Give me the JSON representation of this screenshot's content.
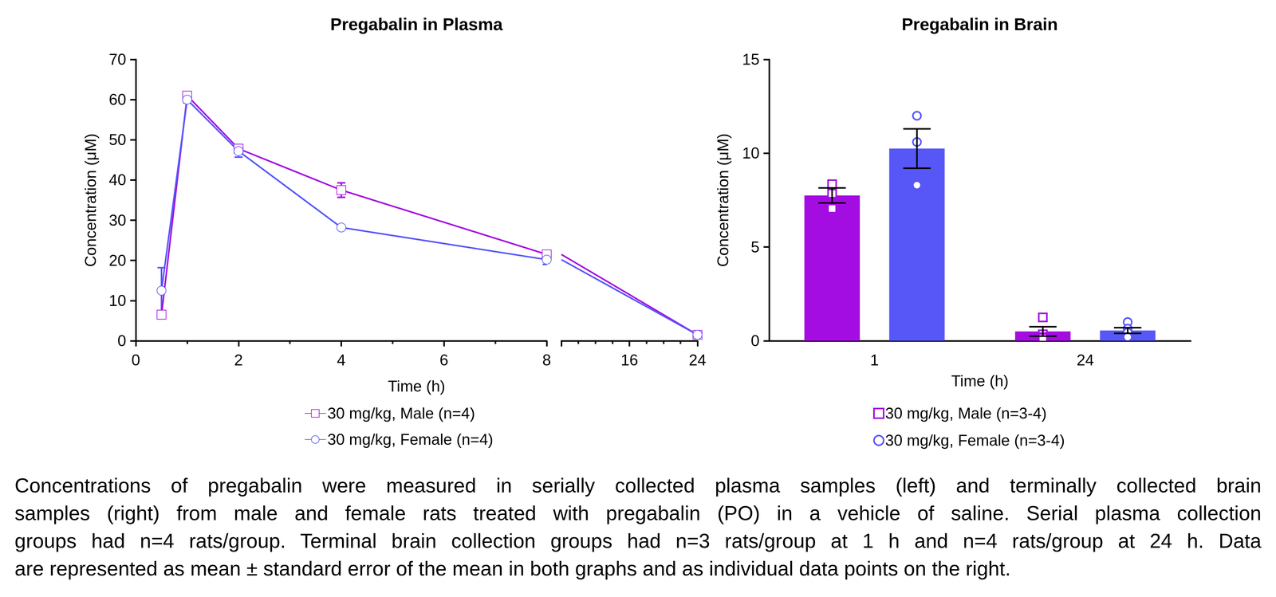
{
  "chart_data": [
    {
      "type": "line",
      "title": "Pregabalin in Plasma",
      "x_label": "Time (h)",
      "y_label": "Concentration (μM)",
      "xlim": [
        0,
        24
      ],
      "x_break": 8,
      "xticks": [
        0,
        2,
        4,
        6,
        8,
        16,
        24
      ],
      "ylim": [
        0,
        70
      ],
      "yticks": [
        0,
        10,
        20,
        30,
        40,
        50,
        60,
        70
      ],
      "x": [
        0.5,
        1,
        2,
        4,
        8,
        24
      ],
      "legend": "bottom",
      "series": [
        {
          "name": "30 mg/kg, Male (n=4)",
          "color": "#A40DE1",
          "marker": "open_square",
          "values": [
            6.5,
            61.0,
            47.8,
            37.5,
            21.5,
            1.5
          ],
          "errors": [
            1.0,
            0.5,
            1.0,
            1.8,
            0.8,
            0.2
          ]
        },
        {
          "name": "30 mg/kg, Female (n=4)",
          "color": "#5757F8",
          "marker": "open_circle",
          "values": [
            12.5,
            60.0,
            47.2,
            28.2,
            20.2,
            1.5
          ],
          "errors": [
            5.7,
            0.8,
            1.5,
            0.5,
            1.2,
            0.2
          ]
        }
      ]
    },
    {
      "type": "bar",
      "title": "Pregabalin in Brain",
      "x_label": "Time (h)",
      "y_label": "Concentration (μM)",
      "categories": [
        "1",
        "24"
      ],
      "ylim": [
        0,
        15
      ],
      "yticks": [
        0,
        5,
        10,
        15
      ],
      "legend": "bottom",
      "series": [
        {
          "name": "30 mg/kg, Male (n=3-4)",
          "color": "#A40DE1",
          "marker": "open_square",
          "values": [
            7.75,
            0.5
          ],
          "errors": [
            0.4,
            0.25
          ],
          "points": [
            [
              8.35,
              7.85,
              7.05
            ],
            [
              1.25,
              0.35,
              0.2,
              0.15
            ]
          ]
        },
        {
          "name": "30 mg/kg, Female (n=3-4)",
          "color": "#5757F8",
          "marker": "open_circle",
          "values": [
            10.25,
            0.55
          ],
          "errors": [
            1.05,
            0.15
          ],
          "points": [
            [
              12.0,
              10.6,
              8.3
            ],
            [
              1.0,
              0.65,
              0.45,
              0.2
            ]
          ]
        }
      ]
    }
  ],
  "caption": [
    "Concentrations of pregabalin were measured in serially collected plasma samples (left) and terminally collected brain",
    "samples (right) from male and female rats treated with pregabalin (PO) in a vehicle of saline. Serial plasma collection",
    "groups had n=4 rats/group. Terminal brain collection groups had n=3 rats/group at 1 h and n=4 rats/group at 24 h. Data",
    "are represented as mean ± standard error of the mean in both graphs and as individual data points on the right."
  ]
}
